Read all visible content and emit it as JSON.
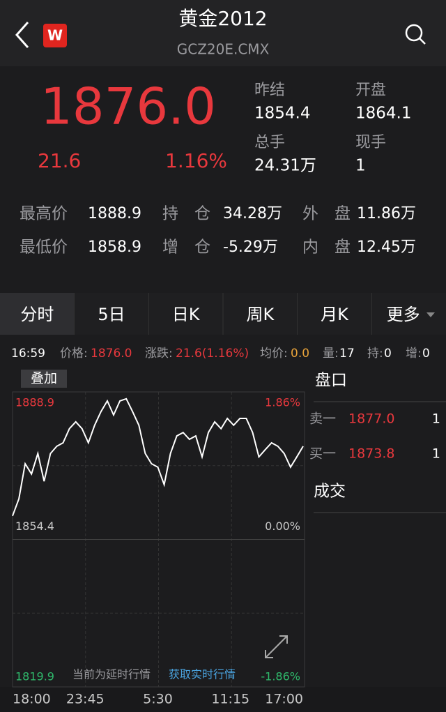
{
  "header": {
    "title": "黄金2012",
    "subtitle": "GCZ20E.CMX"
  },
  "quote": {
    "price": "1876.0",
    "change": "21.6",
    "change_pct": "1.16%",
    "stats": [
      {
        "label": "昨结",
        "value": "1854.4"
      },
      {
        "label": "开盘",
        "value": "1864.1"
      },
      {
        "label": "总手",
        "value": "24.31万"
      },
      {
        "label": "现手",
        "value": "1"
      }
    ]
  },
  "details": [
    [
      "最高价",
      "1888.9",
      "持　仓",
      "34.28万",
      "外　盘",
      "11.86万"
    ],
    [
      "最低价",
      "1858.9",
      "增　仓",
      "-5.29万",
      "内　盘",
      "12.45万"
    ]
  ],
  "tabs": [
    "分时",
    "5日",
    "日K",
    "周K",
    "月K",
    "更多"
  ],
  "info_bar": {
    "time": "16:59",
    "price_label": "价格:",
    "price": "1876.0",
    "change_label": "涨跌:",
    "change": "21.6(1.16%)",
    "avg_label": "均价:",
    "avg": "0.0",
    "vol_label": "量:",
    "vol": "17",
    "hold_label": "持:",
    "hold": "0",
    "inc_label": "增:",
    "inc": "0"
  },
  "chart": {
    "type": "line",
    "overlay_button": "叠加",
    "values": [
      1859.9,
      1863.9,
      1872.1,
      1869.7,
      1874.5,
      1868.0,
      1874.5,
      1876.2,
      1877.0,
      1880.3,
      1881.9,
      1880.3,
      1877.0,
      1881.1,
      1884.3,
      1886.8,
      1883.5,
      1886.8,
      1887.3,
      1884.3,
      1881.1,
      1874.5,
      1872.1,
      1871.3,
      1867.2,
      1874.5,
      1878.6,
      1879.4,
      1877.8,
      1878.6,
      1873.7,
      1879.4,
      1881.9,
      1880.3,
      1882.7,
      1881.1,
      1882.7,
      1882.7,
      1879.4,
      1873.7,
      1875.4,
      1877.0,
      1876.2,
      1874.5,
      1871.3,
      1873.7,
      1876.2
    ],
    "ylim": [
      1819.9,
      1888.9
    ],
    "yticks": [
      1888.9,
      1854.4,
      1819.9
    ],
    "pct_labels": [
      "1.86%",
      "0.00%",
      "-1.86%"
    ],
    "x_labels": [
      "18:00",
      "23:45",
      "5:30",
      "11:15",
      "17:00"
    ],
    "notice": "当前为延时行情",
    "link": "获取实时行情"
  },
  "orderbook": {
    "title": "盘口",
    "rows": [
      {
        "label": "卖一",
        "price": "1877.0",
        "volume": "1"
      },
      {
        "label": "买一",
        "price": "1873.8",
        "volume": "1"
      }
    ],
    "trades_title": "成交"
  }
}
